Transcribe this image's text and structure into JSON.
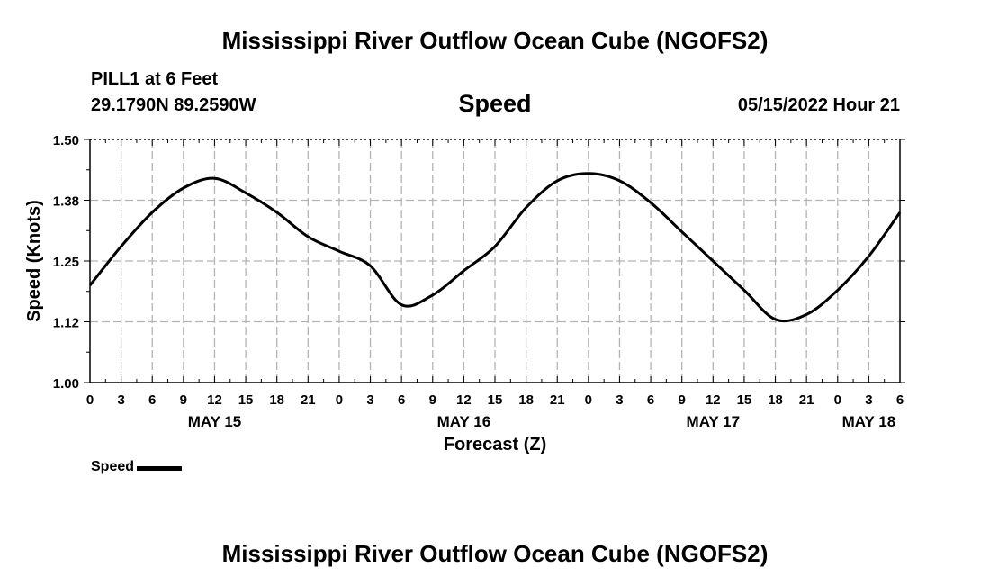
{
  "header": {
    "title": "Mississippi River Outflow Ocean Cube (NGOFS2)",
    "station": "PILL1 at 6 Feet",
    "coordinates": "29.1790N  89.2590W",
    "variable": "Speed",
    "datetime": "05/15/2022 Hour 21"
  },
  "footer": {
    "title": "Mississippi River Outflow Ocean Cube (NGOFS2)"
  },
  "legend": {
    "label": "Speed",
    "color": "#000000"
  },
  "chart_data": {
    "type": "line",
    "title": "Speed",
    "xlabel": "Forecast (Z)",
    "ylabel": "Speed (Knots)",
    "xlim": [
      0,
      78
    ],
    "ylim": [
      1.0,
      1.5
    ],
    "grid": true,
    "yticks": [
      {
        "value": 1.0,
        "label": "1.00"
      },
      {
        "value": 1.125,
        "label": "1.12"
      },
      {
        "value": 1.25,
        "label": "1.25"
      },
      {
        "value": 1.375,
        "label": "1.38"
      },
      {
        "value": 1.5,
        "label": "1.50"
      }
    ],
    "xticks": [
      {
        "value": 0,
        "label": "0"
      },
      {
        "value": 3,
        "label": "3"
      },
      {
        "value": 6,
        "label": "6"
      },
      {
        "value": 9,
        "label": "9"
      },
      {
        "value": 12,
        "label": "12"
      },
      {
        "value": 15,
        "label": "15"
      },
      {
        "value": 18,
        "label": "18"
      },
      {
        "value": 21,
        "label": "21"
      },
      {
        "value": 24,
        "label": "0"
      },
      {
        "value": 27,
        "label": "3"
      },
      {
        "value": 30,
        "label": "6"
      },
      {
        "value": 33,
        "label": "9"
      },
      {
        "value": 36,
        "label": "12"
      },
      {
        "value": 39,
        "label": "15"
      },
      {
        "value": 42,
        "label": "18"
      },
      {
        "value": 45,
        "label": "21"
      },
      {
        "value": 48,
        "label": "0"
      },
      {
        "value": 51,
        "label": "3"
      },
      {
        "value": 54,
        "label": "6"
      },
      {
        "value": 57,
        "label": "9"
      },
      {
        "value": 60,
        "label": "12"
      },
      {
        "value": 63,
        "label": "15"
      },
      {
        "value": 66,
        "label": "18"
      },
      {
        "value": 69,
        "label": "21"
      },
      {
        "value": 72,
        "label": "0"
      },
      {
        "value": 75,
        "label": "3"
      },
      {
        "value": 78,
        "label": "6"
      }
    ],
    "day_labels": [
      {
        "value": 12,
        "label": "MAY 15"
      },
      {
        "value": 36,
        "label": "MAY 16"
      },
      {
        "value": 60,
        "label": "MAY 17"
      },
      {
        "value": 75,
        "label": "MAY 18"
      }
    ],
    "series": [
      {
        "name": "Speed",
        "x": [
          0,
          3,
          6,
          9,
          12,
          15,
          18,
          21,
          24,
          27,
          30,
          33,
          36,
          39,
          42,
          45,
          48,
          51,
          54,
          57,
          60,
          63,
          66,
          69,
          72,
          75,
          78
        ],
        "values": [
          1.2,
          1.28,
          1.35,
          1.4,
          1.42,
          1.39,
          1.35,
          1.3,
          1.27,
          1.24,
          1.16,
          1.18,
          1.23,
          1.28,
          1.36,
          1.415,
          1.43,
          1.415,
          1.37,
          1.31,
          1.25,
          1.19,
          1.13,
          1.14,
          1.19,
          1.26,
          1.35
        ]
      }
    ]
  }
}
